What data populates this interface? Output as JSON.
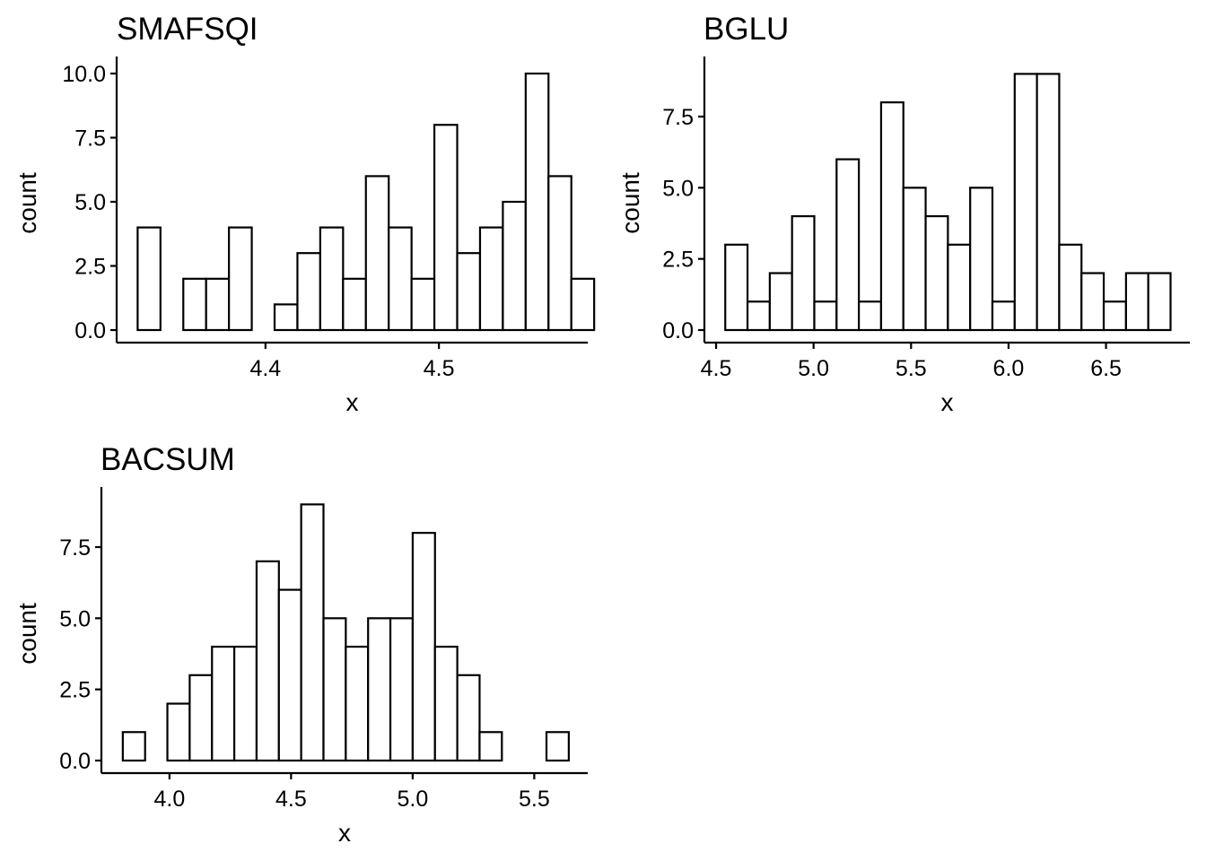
{
  "chart_data": [
    {
      "type": "bar",
      "title": "SMAFSQI",
      "xlabel": "x",
      "ylabel": "count",
      "xlim": [
        4.3142,
        4.5858
      ],
      "ylim": [
        0,
        10
      ],
      "xticks": [
        4.4,
        4.5
      ],
      "xtick_labels": [
        "4.4",
        "4.5"
      ],
      "yticks": [
        0,
        2.5,
        5,
        7.5,
        10
      ],
      "ytick_labels": [
        "0.0",
        "2.5",
        "5.0",
        "7.5",
        "10.0"
      ],
      "bins": {
        "start": 4.3263,
        "width": 0.01316
      },
      "values": [
        4,
        0,
        2,
        2,
        4,
        0,
        1,
        3,
        4,
        2,
        6,
        4,
        2,
        8,
        3,
        4,
        5,
        10,
        6,
        2
      ]
    },
    {
      "type": "bar",
      "title": "BGLU",
      "xlabel": "x",
      "ylabel": "count",
      "xlim": [
        4.44,
        6.93
      ],
      "ylim": [
        0,
        9
      ],
      "xticks": [
        4.5,
        5.0,
        5.5,
        6.0,
        6.5
      ],
      "xtick_labels": [
        "4.5",
        "5.0",
        "5.5",
        "6.0",
        "6.5"
      ],
      "yticks": [
        0,
        2.5,
        5,
        7.5
      ],
      "ytick_labels": [
        "0.0",
        "2.5",
        "5.0",
        "7.5"
      ],
      "bins": {
        "start": 4.547,
        "width": 0.1142
      },
      "values": [
        3,
        1,
        2,
        4,
        1,
        6,
        1,
        8,
        5,
        4,
        3,
        5,
        1,
        9,
        9,
        3,
        2,
        1,
        2,
        2
      ]
    },
    {
      "type": "bar",
      "title": "BACSUM",
      "xlabel": "x",
      "ylabel": "count",
      "xlim": [
        3.72,
        5.72
      ],
      "ylim": [
        0,
        9
      ],
      "xticks": [
        4.0,
        4.5,
        5.0,
        5.5
      ],
      "xtick_labels": [
        "4.0",
        "4.5",
        "5.0",
        "5.5"
      ],
      "yticks": [
        0,
        2.5,
        5,
        7.5
      ],
      "ytick_labels": [
        "0.0",
        "2.5",
        "5.0",
        "7.5"
      ],
      "bins": {
        "start": 3.808,
        "width": 0.0917
      },
      "values": [
        1,
        0,
        2,
        3,
        4,
        4,
        7,
        6,
        9,
        5,
        4,
        5,
        5,
        8,
        4,
        3,
        1,
        0,
        0,
        1
      ]
    }
  ]
}
